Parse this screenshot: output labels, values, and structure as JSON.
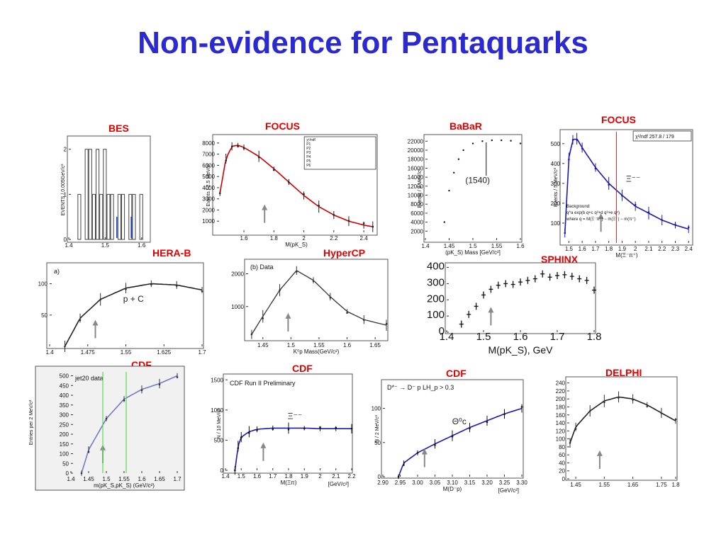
{
  "title": "Non-evidence for Pentaquarks",
  "experiments": {
    "bes": "BES",
    "focus1": "FOCUS",
    "babar": "BaBaR",
    "focus2": "FOCUS",
    "hera_b": "HERA-B",
    "hypercp": "HyperCP",
    "sphinx": "SPHINX",
    "cdf1": "CDF",
    "cdf2": "CDF",
    "cdf3": "CDF",
    "delphi": "DELPHI"
  },
  "chart_data": [
    {
      "name": "BES",
      "type": "bar",
      "ylabel": "EVENTS / 0.005GeV/c²",
      "xticks": [
        "1.4",
        "1.5",
        "1.6"
      ],
      "yticks": [
        "0",
        "1",
        "2"
      ],
      "x": [
        1.43,
        1.44,
        1.45,
        1.46,
        1.47,
        1.48,
        1.49,
        1.5,
        1.51,
        1.52,
        1.53,
        1.54,
        1.55,
        1.56,
        1.57,
        1.58,
        1.59,
        1.6
      ],
      "values": [
        1,
        0,
        2,
        2,
        1,
        2,
        1,
        2,
        1,
        1,
        0,
        1,
        1,
        0,
        1,
        1,
        0,
        1
      ],
      "xlim": [
        1.4,
        1.62
      ],
      "ylim": [
        0,
        2.2
      ]
    },
    {
      "name": "FOCUS",
      "type": "line",
      "xlabel": "M(pK_S)",
      "ylabel": "Events / 2.5 MeV/c²",
      "xticks": [
        "1.6",
        "1.8",
        "2",
        "2.2",
        "2.4"
      ],
      "yticks": [
        "1000",
        "2000",
        "3000",
        "4000",
        "5000",
        "6000",
        "7000",
        "8000"
      ],
      "legend_lines": [
        "χ²/ndf",
        "P1",
        "P2",
        "P3",
        "P4",
        "P5",
        "P6"
      ],
      "x": [
        1.44,
        1.48,
        1.52,
        1.56,
        1.6,
        1.7,
        1.8,
        1.9,
        2.0,
        2.1,
        2.2,
        2.3,
        2.4,
        2.46
      ],
      "values": [
        3500,
        6600,
        7700,
        7800,
        7600,
        6800,
        5700,
        4500,
        3300,
        2300,
        1550,
        1000,
        650,
        500
      ],
      "xlim": [
        1.42,
        2.48
      ],
      "ylim": [
        0,
        8500
      ]
    },
    {
      "name": "BaBaR",
      "type": "scatter",
      "xlabel": "(pK_S) Mass [GeV/c²]",
      "ylabel": "Events / 2 MeV/c²",
      "annotation": "(1540)",
      "xticks": [
        "1.4",
        "1.45",
        "1.5",
        "1.55",
        "1.6"
      ],
      "yticks": [
        "2000",
        "4000",
        "6000",
        "8000",
        "10000",
        "12000",
        "14000",
        "16000",
        "18000",
        "20000",
        "22000"
      ],
      "x": [
        1.44,
        1.45,
        1.46,
        1.47,
        1.48,
        1.5,
        1.52,
        1.54,
        1.56,
        1.58,
        1.6
      ],
      "values": [
        4000,
        11000,
        15000,
        18000,
        20000,
        21500,
        22000,
        22200,
        22200,
        22100,
        21500
      ],
      "xlim": [
        1.4,
        1.6
      ],
      "ylim": [
        0,
        23000
      ]
    },
    {
      "name": "FOCUS",
      "type": "line",
      "xlabel": "M(Ξ⁻π⁺)",
      "ylabel": "Events / 5 MeV/c²",
      "annotation": "Ξ⁻⁻",
      "legend_lines": [
        "χ²/ndf     257.8 / 179"
      ],
      "background_text": [
        "Background:",
        "q^a exp(b q+c q²+d q³+e q⁴)",
        "where q = M(Ξ⁻π⁺) − m(Ξ⁻) − m(π⁺)"
      ],
      "xticks": [
        "1.5",
        "1.6",
        "1.7",
        "1.8",
        "1.9",
        "2",
        "2.1",
        "2.2",
        "2.3",
        "2.4"
      ],
      "yticks": [
        "100",
        "200",
        "300",
        "400",
        "500"
      ],
      "x": [
        1.47,
        1.5,
        1.53,
        1.56,
        1.6,
        1.7,
        1.8,
        1.9,
        2.0,
        2.1,
        2.2,
        2.3,
        2.4
      ],
      "values": [
        50,
        430,
        520,
        525,
        480,
        380,
        300,
        240,
        185,
        150,
        115,
        90,
        70
      ],
      "xlim": [
        1.45,
        2.42
      ],
      "ylim": [
        0,
        560
      ]
    },
    {
      "name": "HERA-B",
      "type": "line",
      "panel_label": "a)",
      "annotation": "p + C",
      "xticks": [
        "1.4",
        "1.475",
        "1.55",
        "1.625",
        "1.7"
      ],
      "yticks": [
        "50",
        "100"
      ],
      "x": [
        1.43,
        1.46,
        1.5,
        1.55,
        1.6,
        1.65,
        1.7
      ],
      "values": [
        0,
        45,
        75,
        93,
        100,
        98,
        90
      ],
      "xlim": [
        1.4,
        1.7
      ],
      "ylim": [
        0,
        130
      ]
    },
    {
      "name": "HyperCP",
      "type": "line",
      "panel_label": "(b) Data",
      "xlabel": "K⁰p  Mass(GeV/c²)",
      "xticks": [
        "1.45",
        "1.5",
        "1.55",
        "1.6",
        "1.65"
      ],
      "yticks": [
        "1000",
        "2000"
      ],
      "x": [
        1.43,
        1.45,
        1.48,
        1.51,
        1.54,
        1.57,
        1.6,
        1.63,
        1.67
      ],
      "values": [
        150,
        700,
        1500,
        2100,
        1800,
        1300,
        850,
        600,
        430
      ],
      "xlim": [
        1.42,
        1.67
      ],
      "ylim": [
        0,
        2400
      ]
    },
    {
      "name": "SPHINX",
      "type": "scatter",
      "xlabel": "M(pK_S),  GeV",
      "xticks": [
        "1.4",
        "1.5",
        "1.6",
        "1.7",
        "1.8"
      ],
      "yticks": [
        "0",
        "100",
        "200",
        "300",
        "400"
      ],
      "x": [
        1.44,
        1.46,
        1.48,
        1.5,
        1.52,
        1.54,
        1.56,
        1.58,
        1.6,
        1.62,
        1.64,
        1.66,
        1.68,
        1.7,
        1.72,
        1.74,
        1.76,
        1.78,
        1.8
      ],
      "values": [
        50,
        110,
        160,
        230,
        265,
        290,
        300,
        295,
        310,
        320,
        330,
        360,
        340,
        350,
        355,
        345,
        330,
        320,
        260
      ],
      "xlim": [
        1.4,
        1.8
      ],
      "ylim": [
        0,
        420
      ]
    },
    {
      "name": "CDF",
      "type": "line",
      "panel_label": "jet20 data",
      "xlabel": "m(pK_S,pK_S) (GeV/c²)",
      "ylabel": "Entries per 2 MeV/c²",
      "xticks": [
        "1.4",
        "1.45",
        "1.5",
        "1.55",
        "1.6",
        "1.65",
        "1.7"
      ],
      "yticks": [
        "0",
        "50",
        "100",
        "150",
        "200",
        "250",
        "300",
        "350",
        "400",
        "450",
        "500"
      ],
      "x": [
        1.43,
        1.45,
        1.5,
        1.55,
        1.6,
        1.65,
        1.7
      ],
      "values": [
        0,
        120,
        280,
        380,
        430,
        460,
        500
      ],
      "xlim": [
        1.4,
        1.7
      ],
      "ylim": [
        0,
        520
      ]
    },
    {
      "name": "CDF",
      "type": "line",
      "panel_label": "CDF Run II Preliminary",
      "annotation": "Ξ⁻⁻",
      "xlabel": "M(Ξπ)",
      "xunit": "[GeV/c²]",
      "ylabel": "N / 10 MeV/c²",
      "xticks": [
        "1.4",
        "1.5",
        "1.6",
        "1.7",
        "1.8",
        "1.9",
        "2",
        "2.1",
        "2.2"
      ],
      "yticks": [
        "0",
        "500",
        "1000",
        "1500"
      ],
      "x": [
        1.46,
        1.48,
        1.5,
        1.55,
        1.6,
        1.7,
        1.8,
        1.9,
        2.0,
        2.1,
        2.2
      ],
      "values": [
        0,
        400,
        550,
        640,
        680,
        700,
        700,
        700,
        690,
        690,
        690
      ],
      "xlim": [
        1.4,
        2.2
      ],
      "ylim": [
        0,
        1550
      ]
    },
    {
      "name": "CDF",
      "type": "line",
      "panel_label": "D*⁻ → D⁻ p  LH_p > 0.3",
      "annotation": "Θ⁰c",
      "xlabel": "M(D⁻p)",
      "xunit": "[GeV/c²]",
      "ylabel": "N / 2 MeV/c²",
      "xticks": [
        "2.90",
        "2.95",
        "3.00",
        "3.05",
        "3.10",
        "3.15",
        "3.20",
        "3.25",
        "3.30"
      ],
      "yticks": [
        "0",
        "50",
        "100"
      ],
      "x": [
        2.945,
        2.96,
        3.0,
        3.05,
        3.1,
        3.15,
        3.2,
        3.25,
        3.3
      ],
      "values": [
        0,
        20,
        35,
        48,
        60,
        72,
        82,
        92,
        100
      ],
      "xlim": [
        2.9,
        3.3
      ],
      "ylim": [
        0,
        140
      ]
    },
    {
      "name": "DELPHI",
      "type": "line",
      "xticks": [
        "1.45",
        "1.55",
        "1.65",
        "1.75",
        "1.8"
      ],
      "yticks": [
        "0",
        "20",
        "40",
        "60",
        "80",
        "100",
        "120",
        "140",
        "160",
        "180",
        "200",
        "220",
        "240"
      ],
      "x": [
        1.43,
        1.45,
        1.5,
        1.55,
        1.6,
        1.65,
        1.7,
        1.75,
        1.8
      ],
      "values": [
        90,
        130,
        170,
        195,
        205,
        200,
        185,
        165,
        145
      ],
      "xlim": [
        1.42,
        1.8
      ],
      "ylim": [
        0,
        250
      ]
    }
  ]
}
